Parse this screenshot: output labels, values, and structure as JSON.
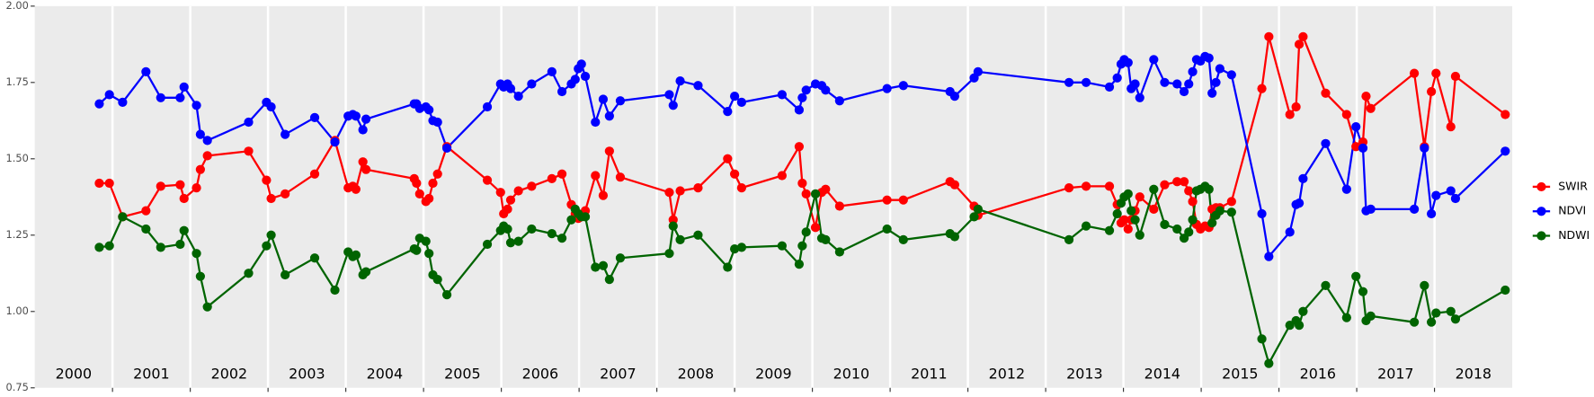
{
  "chart_data": {
    "type": "line",
    "x": [
      2000.83,
      2000.96,
      2001.13,
      2001.43,
      2001.62,
      2001.87,
      2001.92,
      2002.08,
      2002.13,
      2002.22,
      2002.75,
      2002.98,
      2003.04,
      2003.22,
      2003.6,
      2003.86,
      2004.03,
      2004.09,
      2004.13,
      2004.22,
      2004.26,
      2004.88,
      2004.91,
      2004.95,
      2005.03,
      2005.07,
      2005.12,
      2005.18,
      2005.3,
      2005.82,
      2005.99,
      2006.03,
      2006.08,
      2006.12,
      2006.22,
      2006.39,
      2006.65,
      2006.78,
      2006.9,
      2006.95,
      2006.99,
      2007.03,
      2007.08,
      2007.21,
      2007.31,
      2007.39,
      2007.53,
      2008.16,
      2008.21,
      2008.3,
      2008.53,
      2008.91,
      2009.0,
      2009.09,
      2009.61,
      2009.83,
      2009.87,
      2009.92,
      2010.04,
      2010.12,
      2010.17,
      2010.35,
      2010.96,
      2011.17,
      2011.77,
      2011.83,
      2012.08,
      2012.13,
      2013.3,
      2013.52,
      2013.82,
      2013.92,
      2013.97,
      2014.01,
      2014.06,
      2014.1,
      2014.15,
      2014.21,
      2014.39,
      2014.53,
      2014.69,
      2014.78,
      2014.84,
      2014.89,
      2014.94,
      2014.99,
      2015.05,
      2015.1,
      2015.14,
      2015.19,
      2015.24,
      2015.39,
      2015.78,
      2015.87,
      2016.14,
      2016.22,
      2016.26,
      2016.31,
      2016.6,
      2016.87,
      2016.99,
      2017.08,
      2017.12,
      2017.18,
      2017.74,
      2017.87,
      2017.96,
      2018.02,
      2018.21,
      2018.27,
      2018.91
    ],
    "series": [
      {
        "name": "SWIR",
        "color": "#ff0000",
        "values": [
          1.42,
          1.42,
          1.31,
          1.33,
          1.41,
          1.415,
          1.37,
          1.405,
          1.465,
          1.51,
          1.525,
          1.43,
          1.37,
          1.385,
          1.45,
          1.56,
          1.405,
          1.41,
          1.4,
          1.49,
          1.465,
          1.435,
          1.42,
          1.385,
          1.36,
          1.37,
          1.42,
          1.45,
          1.54,
          1.43,
          1.39,
          1.32,
          1.335,
          1.365,
          1.395,
          1.41,
          1.435,
          1.45,
          1.35,
          1.32,
          1.305,
          1.31,
          1.33,
          1.445,
          1.38,
          1.525,
          1.44,
          1.39,
          1.3,
          1.395,
          1.405,
          1.5,
          1.45,
          1.405,
          1.445,
          1.54,
          1.42,
          1.385,
          1.275,
          1.39,
          1.4,
          1.345,
          1.365,
          1.365,
          1.425,
          1.415,
          1.345,
          1.315,
          1.405,
          1.41,
          1.41,
          1.35,
          1.29,
          1.3,
          1.27,
          1.3,
          1.33,
          1.375,
          1.335,
          1.415,
          1.425,
          1.425,
          1.395,
          1.36,
          1.285,
          1.27,
          1.28,
          1.275,
          1.335,
          1.34,
          1.34,
          1.36,
          1.73,
          1.9,
          1.645,
          1.67,
          1.875,
          1.9,
          1.715,
          1.645,
          1.54,
          1.555,
          1.705,
          1.665,
          1.78,
          1.54,
          1.72,
          1.78,
          1.605,
          1.77,
          1.645
        ]
      },
      {
        "name": "NDVI",
        "color": "#0000ff",
        "values": [
          1.68,
          1.71,
          1.685,
          1.785,
          1.7,
          1.7,
          1.735,
          1.675,
          1.58,
          1.56,
          1.62,
          1.685,
          1.67,
          1.58,
          1.635,
          1.555,
          1.64,
          1.645,
          1.64,
          1.595,
          1.63,
          1.68,
          1.68,
          1.665,
          1.67,
          1.66,
          1.625,
          1.62,
          1.535,
          1.67,
          1.745,
          1.735,
          1.745,
          1.73,
          1.705,
          1.745,
          1.785,
          1.72,
          1.745,
          1.76,
          1.795,
          1.81,
          1.77,
          1.62,
          1.695,
          1.64,
          1.69,
          1.71,
          1.675,
          1.755,
          1.74,
          1.655,
          1.705,
          1.685,
          1.71,
          1.66,
          1.7,
          1.725,
          1.745,
          1.74,
          1.725,
          1.69,
          1.73,
          1.74,
          1.72,
          1.705,
          1.765,
          1.785,
          1.75,
          1.75,
          1.735,
          1.765,
          1.81,
          1.825,
          1.815,
          1.73,
          1.745,
          1.7,
          1.825,
          1.75,
          1.745,
          1.72,
          1.745,
          1.785,
          1.825,
          1.82,
          1.835,
          1.83,
          1.715,
          1.75,
          1.795,
          1.775,
          1.32,
          1.18,
          1.26,
          1.35,
          1.355,
          1.435,
          1.55,
          1.4,
          1.605,
          1.535,
          1.33,
          1.335,
          1.335,
          1.535,
          1.32,
          1.38,
          1.395,
          1.37,
          1.525
        ]
      },
      {
        "name": "NDWI",
        "color": "#006400",
        "values": [
          1.21,
          1.215,
          1.31,
          1.27,
          1.21,
          1.22,
          1.265,
          1.19,
          1.115,
          1.015,
          1.125,
          1.215,
          1.25,
          1.12,
          1.175,
          1.07,
          1.195,
          1.18,
          1.185,
          1.12,
          1.13,
          1.205,
          1.2,
          1.24,
          1.23,
          1.19,
          1.12,
          1.105,
          1.055,
          1.22,
          1.265,
          1.28,
          1.27,
          1.225,
          1.23,
          1.27,
          1.255,
          1.24,
          1.3,
          1.335,
          1.32,
          1.31,
          1.31,
          1.145,
          1.15,
          1.105,
          1.175,
          1.19,
          1.28,
          1.235,
          1.25,
          1.145,
          1.205,
          1.21,
          1.215,
          1.155,
          1.215,
          1.26,
          1.385,
          1.24,
          1.235,
          1.195,
          1.27,
          1.235,
          1.255,
          1.245,
          1.31,
          1.335,
          1.235,
          1.28,
          1.265,
          1.32,
          1.355,
          1.375,
          1.385,
          1.33,
          1.3,
          1.25,
          1.4,
          1.285,
          1.27,
          1.24,
          1.26,
          1.3,
          1.395,
          1.4,
          1.41,
          1.4,
          1.29,
          1.315,
          1.33,
          1.325,
          0.91,
          0.83,
          0.955,
          0.97,
          0.955,
          1.0,
          1.085,
          0.98,
          1.115,
          1.065,
          0.97,
          0.985,
          0.965,
          1.085,
          0.965,
          0.995,
          1.0,
          0.975,
          1.07
        ]
      }
    ],
    "xlim": [
      2000,
      2019
    ],
    "xticks": [
      2001,
      2002,
      2003,
      2004,
      2005,
      2006,
      2007,
      2008,
      2009,
      2010,
      2011,
      2012,
      2013,
      2014,
      2015,
      2016,
      2017,
      2018
    ],
    "xlabels": [
      {
        "value": 2000.5,
        "label": "2000"
      },
      {
        "value": 2001.5,
        "label": "2001"
      },
      {
        "value": 2002.5,
        "label": "2002"
      },
      {
        "value": 2003.5,
        "label": "2003"
      },
      {
        "value": 2004.5,
        "label": "2004"
      },
      {
        "value": 2005.5,
        "label": "2005"
      },
      {
        "value": 2006.5,
        "label": "2006"
      },
      {
        "value": 2007.5,
        "label": "2007"
      },
      {
        "value": 2008.5,
        "label": "2008"
      },
      {
        "value": 2009.5,
        "label": "2009"
      },
      {
        "value": 2010.5,
        "label": "2010"
      },
      {
        "value": 2011.5,
        "label": "2011"
      },
      {
        "value": 2012.5,
        "label": "2012"
      },
      {
        "value": 2013.5,
        "label": "2013"
      },
      {
        "value": 2014.5,
        "label": "2014"
      },
      {
        "value": 2015.5,
        "label": "2015"
      },
      {
        "value": 2016.5,
        "label": "2016"
      },
      {
        "value": 2017.5,
        "label": "2017"
      },
      {
        "value": 2018.5,
        "label": "2018"
      }
    ],
    "ylim": [
      0.75,
      2.0
    ],
    "yticks": [
      {
        "value": 0.75,
        "label": "0.75"
      },
      {
        "value": 1.0,
        "label": "1.00"
      },
      {
        "value": 1.25,
        "label": "1.25"
      },
      {
        "value": 1.5,
        "label": "1.50"
      },
      {
        "value": 1.75,
        "label": "1.75"
      },
      {
        "value": 2.0,
        "label": "2.00"
      }
    ],
    "grid": "x",
    "legend": "right"
  }
}
